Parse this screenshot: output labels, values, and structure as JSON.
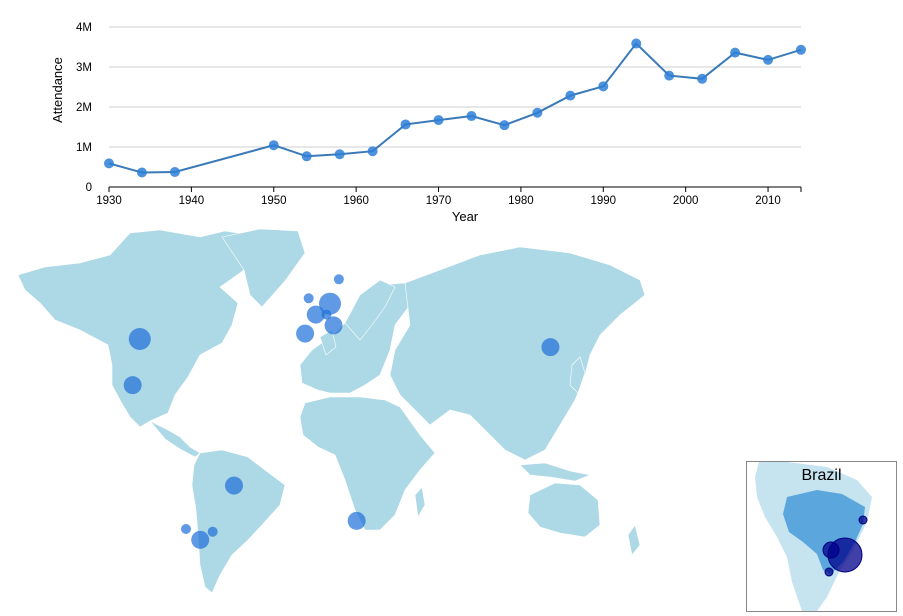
{
  "chart_data": {
    "type": "line",
    "xlabel": "Year",
    "ylabel": "Attendance",
    "xlim": [
      1930,
      2014
    ],
    "ylim": [
      0,
      4000000
    ],
    "x_ticks": [
      "1930",
      "1940",
      "1950",
      "1960",
      "1970",
      "1980",
      "1990",
      "2000",
      "2010"
    ],
    "y_ticks": [
      "0",
      "1M",
      "2M",
      "3M",
      "4M"
    ],
    "grid": "horizontal",
    "line_color": "#3a7ab8",
    "point_color": "#2e7fd6",
    "series": [
      {
        "x": [
          1930,
          1934,
          1938,
          1950,
          1954,
          1958,
          1962,
          1966,
          1970,
          1974,
          1978,
          1982,
          1986,
          1990,
          1994,
          1998,
          2002,
          2006,
          2010,
          2014
        ],
        "values": [
          590000,
          363000,
          375000,
          1045000,
          768000,
          819000,
          894000,
          1564000,
          1673000,
          1774000,
          1546000,
          1856000,
          2285000,
          2517000,
          3587000,
          2785000,
          2705000,
          3359000,
          3178000,
          3430000
        ]
      }
    ]
  },
  "map": {
    "land_color": "#add8e6",
    "marker_color": "#1e6fd9",
    "host_markers": [
      {
        "name": "USA",
        "lon": -97,
        "lat": 38,
        "size": "large"
      },
      {
        "name": "Mexico",
        "lon": -101,
        "lat": 21,
        "size": "medium"
      },
      {
        "name": "Brazil",
        "lon": -44,
        "lat": -16,
        "size": "medium"
      },
      {
        "name": "Uruguay",
        "lon": -56,
        "lat": -33,
        "size": "small"
      },
      {
        "name": "Argentina",
        "lon": -63,
        "lat": -36,
        "size": "medium"
      },
      {
        "name": "Chile",
        "lon": -71,
        "lat": -32,
        "size": "small"
      },
      {
        "name": "England",
        "lon": -2,
        "lat": 53,
        "size": "small"
      },
      {
        "name": "France",
        "lon": 2,
        "lat": 47,
        "size": "medium"
      },
      {
        "name": "Germany",
        "lon": 10,
        "lat": 51,
        "size": "large"
      },
      {
        "name": "Switzerland",
        "lon": 8,
        "lat": 47,
        "size": "small"
      },
      {
        "name": "Italy",
        "lon": 12,
        "lat": 43,
        "size": "medium"
      },
      {
        "name": "Spain",
        "lon": -4,
        "lat": 40,
        "size": "medium"
      },
      {
        "name": "Sweden",
        "lon": 15,
        "lat": 60,
        "size": "small"
      },
      {
        "name": "Japan/Korea",
        "lon": 134,
        "lat": 35,
        "size": "medium"
      },
      {
        "name": "South Africa",
        "lon": 25,
        "lat": -29,
        "size": "medium"
      }
    ]
  },
  "inset": {
    "title": "Brazil",
    "country_color": "#5aa6dd",
    "continent_color": "#c6e3f0",
    "marker_color": "#00008b"
  }
}
